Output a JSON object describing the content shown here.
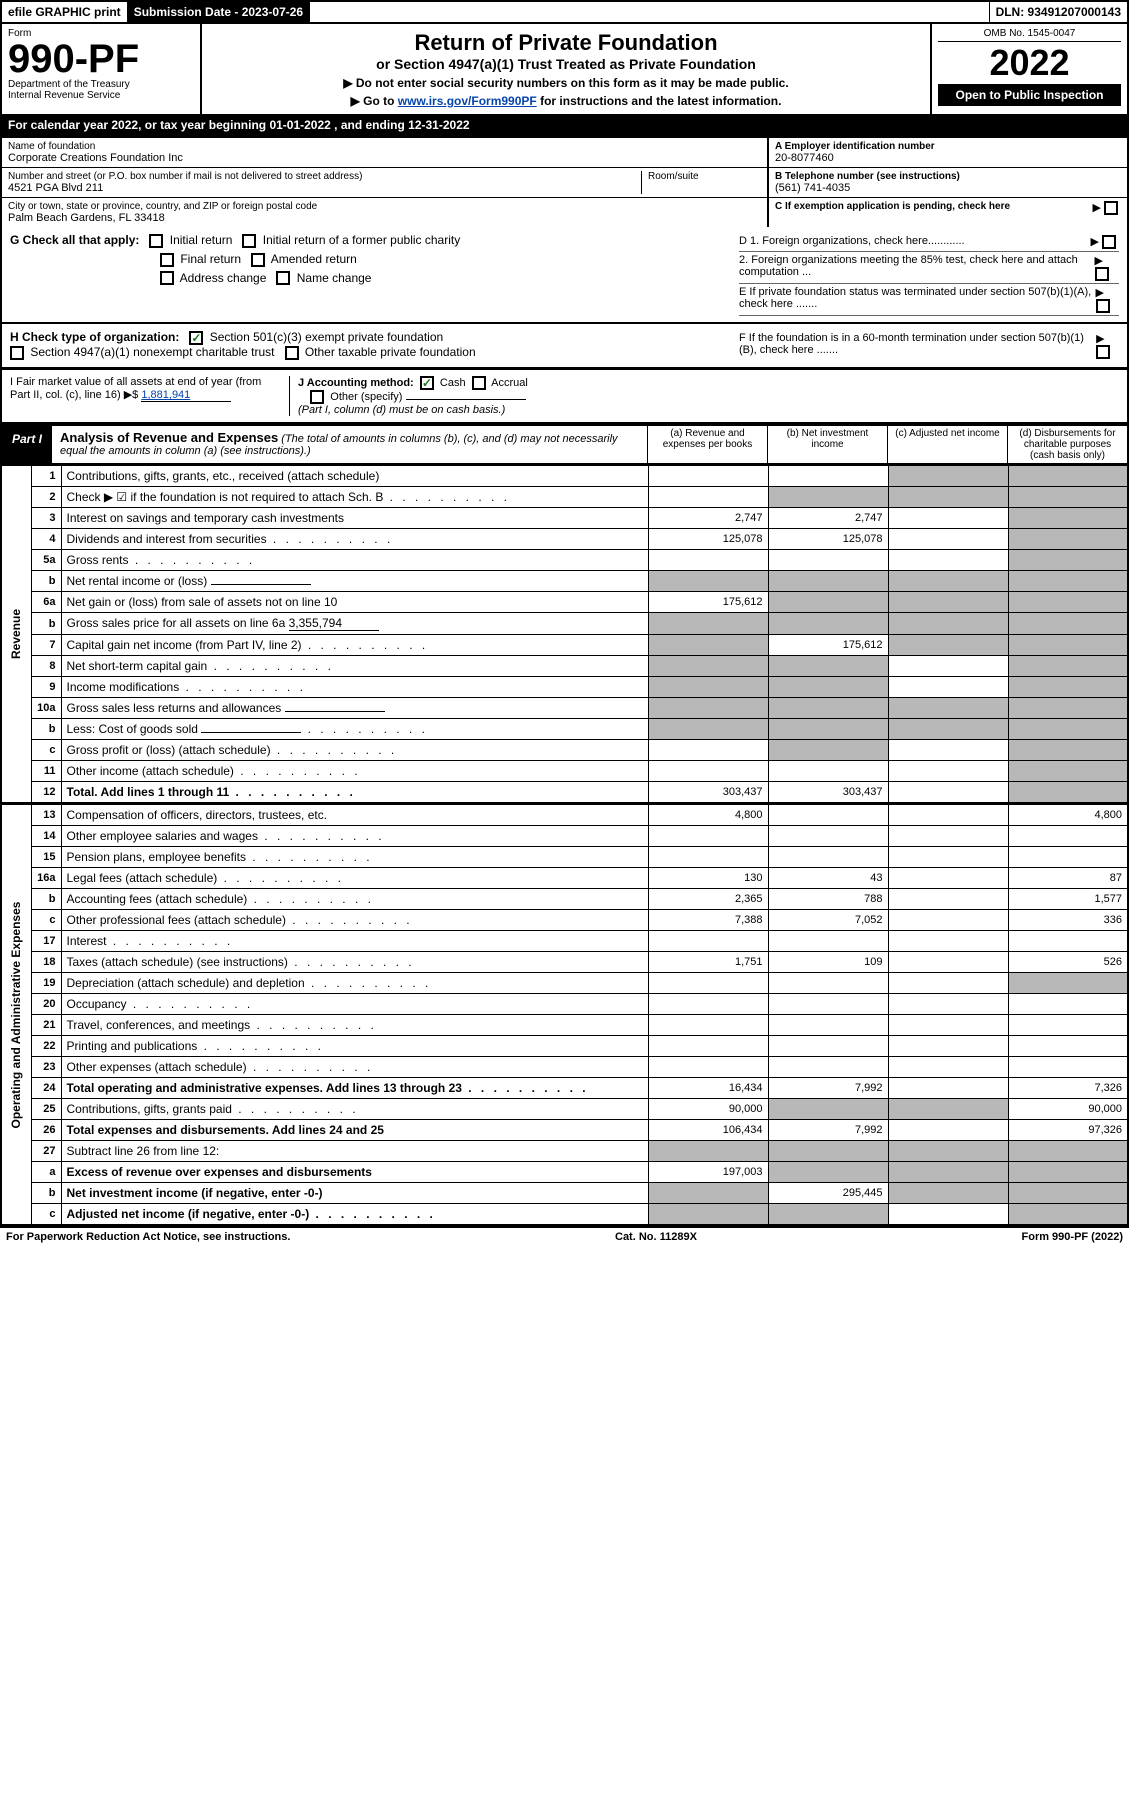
{
  "top": {
    "efile": "efile GRAPHIC print",
    "subdate_lbl": "Submission Date - 2023-07-26",
    "dln_lbl": "DLN: 93491207000143"
  },
  "header": {
    "form_word": "Form",
    "form_no": "990-PF",
    "dept": "Department of the Treasury",
    "irs": "Internal Revenue Service",
    "title": "Return of Private Foundation",
    "subtitle": "or Section 4947(a)(1) Trust Treated as Private Foundation",
    "note1": "▶ Do not enter social security numbers on this form as it may be made public.",
    "note2_pre": "▶ Go to ",
    "note2_link": "www.irs.gov/Form990PF",
    "note2_post": " for instructions and the latest information.",
    "omb": "OMB No. 1545-0047",
    "year": "2022",
    "open": "Open to Public Inspection"
  },
  "cal": "For calendar year 2022, or tax year beginning 01-01-2022           , and ending 12-31-2022",
  "info": {
    "name_lbl": "Name of foundation",
    "name": "Corporate Creations Foundation Inc",
    "addr_lbl": "Number and street (or P.O. box number if mail is not delivered to street address)",
    "addr": "4521 PGA Blvd 211",
    "room_lbl": "Room/suite",
    "city_lbl": "City or town, state or province, country, and ZIP or foreign postal code",
    "city": "Palm Beach Gardens, FL  33418",
    "a_lbl": "A Employer identification number",
    "ein": "20-8077460",
    "b_lbl": "B Telephone number (see instructions)",
    "phone": "(561) 741-4035",
    "c_lbl": "C If exemption application is pending, check here",
    "d1": "D 1. Foreign organizations, check here............",
    "d2": "2. Foreign organizations meeting the 85% test, check here and attach computation ...",
    "e_lbl": "E  If private foundation status was terminated under section 507(b)(1)(A), check here .......",
    "f_lbl": "F  If the foundation is in a 60-month termination under section 507(b)(1)(B), check here ......."
  },
  "g": {
    "lbl": "G Check all that apply:",
    "opts": [
      "Initial return",
      "Final return",
      "Address change",
      "Initial return of a former public charity",
      "Amended return",
      "Name change"
    ]
  },
  "h": {
    "lbl": "H Check type of organization:",
    "o1": "Section 501(c)(3) exempt private foundation",
    "o2": "Section 4947(a)(1) nonexempt charitable trust",
    "o3": "Other taxable private foundation"
  },
  "i": {
    "lbl": "I Fair market value of all assets at end of year (from Part II, col. (c), line 16)",
    "val": "1,881,941"
  },
  "j": {
    "lbl": "J Accounting method:",
    "cash": "Cash",
    "accrual": "Accrual",
    "other": "Other (specify)",
    "note": "(Part I, column (d) must be on cash basis.)"
  },
  "part1": {
    "tab": "Part I",
    "title": "Analysis of Revenue and Expenses",
    "desc": "(The total of amounts in columns (b), (c), and (d) may not necessarily equal the amounts in column (a) (see instructions).)",
    "cols": {
      "a": "(a)  Revenue and expenses per books",
      "b": "(b)  Net investment income",
      "c": "(c)  Adjusted net income",
      "d": "(d)  Disbursements for charitable purposes (cash basis only)"
    }
  },
  "side": {
    "rev": "Revenue",
    "exp": "Operating and Administrative Expenses"
  },
  "rows": [
    {
      "n": "1",
      "t": "Contributions, gifts, grants, etc., received (attach schedule)",
      "a": "",
      "b": "",
      "c": "g",
      "d": "g"
    },
    {
      "n": "2",
      "t": "Check ▶ ☑ if the foundation is not required to attach Sch. B",
      "dots": true,
      "a": "",
      "b": "g",
      "c": "g",
      "d": "g"
    },
    {
      "n": "3",
      "t": "Interest on savings and temporary cash investments",
      "a": "2,747",
      "b": "2,747",
      "c": "",
      "d": "g"
    },
    {
      "n": "4",
      "t": "Dividends and interest from securities",
      "dots": true,
      "a": "125,078",
      "b": "125,078",
      "c": "",
      "d": "g"
    },
    {
      "n": "5a",
      "t": "Gross rents",
      "dots": true,
      "a": "",
      "b": "",
      "c": "",
      "d": "g"
    },
    {
      "n": "b",
      "t": "Net rental income or (loss)",
      "box": true,
      "a": "g",
      "b": "g",
      "c": "g",
      "d": "g"
    },
    {
      "n": "6a",
      "t": "Net gain or (loss) from sale of assets not on line 10",
      "a": "175,612",
      "b": "g",
      "c": "g",
      "d": "g"
    },
    {
      "n": "b",
      "t": "Gross sales price for all assets on line 6a",
      "inline": "3,355,794",
      "a": "g",
      "b": "g",
      "c": "g",
      "d": "g"
    },
    {
      "n": "7",
      "t": "Capital gain net income (from Part IV, line 2)",
      "dots": true,
      "a": "g",
      "b": "175,612",
      "c": "g",
      "d": "g"
    },
    {
      "n": "8",
      "t": "Net short-term capital gain",
      "dots": true,
      "a": "g",
      "b": "g",
      "c": "",
      "d": "g"
    },
    {
      "n": "9",
      "t": "Income modifications",
      "dots": true,
      "a": "g",
      "b": "g",
      "c": "",
      "d": "g"
    },
    {
      "n": "10a",
      "t": "Gross sales less returns and allowances",
      "box": true,
      "a": "g",
      "b": "g",
      "c": "g",
      "d": "g"
    },
    {
      "n": "b",
      "t": "Less: Cost of goods sold",
      "dots": true,
      "box": true,
      "a": "g",
      "b": "g",
      "c": "g",
      "d": "g"
    },
    {
      "n": "c",
      "t": "Gross profit or (loss) (attach schedule)",
      "dots": true,
      "a": "",
      "b": "g",
      "c": "",
      "d": "g"
    },
    {
      "n": "11",
      "t": "Other income (attach schedule)",
      "dots": true,
      "a": "",
      "b": "",
      "c": "",
      "d": "g"
    },
    {
      "n": "12",
      "t": "Total. Add lines 1 through 11",
      "dots": true,
      "bold": true,
      "a": "303,437",
      "b": "303,437",
      "c": "",
      "d": "g"
    }
  ],
  "rows2": [
    {
      "n": "13",
      "t": "Compensation of officers, directors, trustees, etc.",
      "a": "4,800",
      "b": "",
      "c": "",
      "d": "4,800"
    },
    {
      "n": "14",
      "t": "Other employee salaries and wages",
      "dots": true,
      "a": "",
      "b": "",
      "c": "",
      "d": ""
    },
    {
      "n": "15",
      "t": "Pension plans, employee benefits",
      "dots": true,
      "a": "",
      "b": "",
      "c": "",
      "d": ""
    },
    {
      "n": "16a",
      "t": "Legal fees (attach schedule)",
      "dots": true,
      "a": "130",
      "b": "43",
      "c": "",
      "d": "87"
    },
    {
      "n": "b",
      "t": "Accounting fees (attach schedule)",
      "dots": true,
      "a": "2,365",
      "b": "788",
      "c": "",
      "d": "1,577"
    },
    {
      "n": "c",
      "t": "Other professional fees (attach schedule)",
      "dots": true,
      "a": "7,388",
      "b": "7,052",
      "c": "",
      "d": "336"
    },
    {
      "n": "17",
      "t": "Interest",
      "dots": true,
      "a": "",
      "b": "",
      "c": "",
      "d": ""
    },
    {
      "n": "18",
      "t": "Taxes (attach schedule) (see instructions)",
      "dots": true,
      "a": "1,751",
      "b": "109",
      "c": "",
      "d": "526"
    },
    {
      "n": "19",
      "t": "Depreciation (attach schedule) and depletion",
      "dots": true,
      "a": "",
      "b": "",
      "c": "",
      "d": "g"
    },
    {
      "n": "20",
      "t": "Occupancy",
      "dots": true,
      "a": "",
      "b": "",
      "c": "",
      "d": ""
    },
    {
      "n": "21",
      "t": "Travel, conferences, and meetings",
      "dots": true,
      "a": "",
      "b": "",
      "c": "",
      "d": ""
    },
    {
      "n": "22",
      "t": "Printing and publications",
      "dots": true,
      "a": "",
      "b": "",
      "c": "",
      "d": ""
    },
    {
      "n": "23",
      "t": "Other expenses (attach schedule)",
      "dots": true,
      "a": "",
      "b": "",
      "c": "",
      "d": ""
    },
    {
      "n": "24",
      "t": "Total operating and administrative expenses. Add lines 13 through 23",
      "dots": true,
      "bold": true,
      "a": "16,434",
      "b": "7,992",
      "c": "",
      "d": "7,326"
    },
    {
      "n": "25",
      "t": "Contributions, gifts, grants paid",
      "dots": true,
      "a": "90,000",
      "b": "g",
      "c": "g",
      "d": "90,000"
    },
    {
      "n": "26",
      "t": "Total expenses and disbursements. Add lines 24 and 25",
      "bold": true,
      "a": "106,434",
      "b": "7,992",
      "c": "",
      "d": "97,326"
    },
    {
      "n": "27",
      "t": "Subtract line 26 from line 12:",
      "a": "g",
      "b": "g",
      "c": "g",
      "d": "g"
    },
    {
      "n": "a",
      "t": "Excess of revenue over expenses and disbursements",
      "bold": true,
      "a": "197,003",
      "b": "g",
      "c": "g",
      "d": "g"
    },
    {
      "n": "b",
      "t": "Net investment income (if negative, enter -0-)",
      "bold": true,
      "a": "g",
      "b": "295,445",
      "c": "g",
      "d": "g"
    },
    {
      "n": "c",
      "t": "Adjusted net income (if negative, enter -0-)",
      "dots": true,
      "bold": true,
      "a": "g",
      "b": "g",
      "c": "",
      "d": "g"
    }
  ],
  "footer": {
    "l": "For Paperwork Reduction Act Notice, see instructions.",
    "c": "Cat. No. 11289X",
    "r": "Form 990-PF (2022)"
  }
}
